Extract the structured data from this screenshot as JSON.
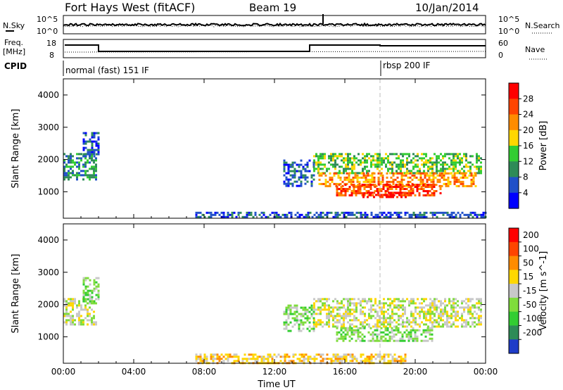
{
  "header": {
    "station": "Fort Hays West (fitACF)",
    "beam": "Beam 19",
    "date": "10/Jan/2014"
  },
  "top_panels": {
    "nsky_label": "N.Sky",
    "nsearch_label": "N.Search",
    "nsky_ticks": [
      "10^5",
      "10^0"
    ],
    "nsearch_ticks": [
      "10^5",
      "10^0"
    ],
    "freq_label_1": "Freq.",
    "freq_label_2": "[MHz]",
    "freq_ticks": [
      "18",
      "8"
    ],
    "nave_label": "Nave",
    "nave_ticks": [
      "60",
      "0"
    ],
    "cpid_label": "CPID",
    "cpid_mode_1": "normal (fast) 151 IF",
    "cpid_mode_2": "rbsp 200 IF"
  },
  "chart_data": [
    {
      "type": "heatmap",
      "title": "",
      "xlabel": "Time UT",
      "ylabel": "Slant Range [km]",
      "x_ticks": [
        "00:00",
        "04:00",
        "08:00",
        "12:00",
        "16:00",
        "20:00",
        "00:00"
      ],
      "y_ticks": [
        "1000",
        "2000",
        "3000",
        "4000"
      ],
      "xlim_hours": [
        0,
        24
      ],
      "ylim_km": [
        180,
        4500
      ],
      "colorbar": {
        "label": "Power [dB]",
        "ticks": [
          "4",
          "8",
          "12",
          "16",
          "20",
          "24",
          "28"
        ],
        "colors": [
          "#0000ff",
          "#2050c8",
          "#2e8b57",
          "#32cd32",
          "#ffd700",
          "#ff8c00",
          "#ff4500",
          "#ff0000"
        ]
      },
      "echo_regions": [
        {
          "t0": 0.0,
          "t1": 1.9,
          "r0": 1400,
          "r1": 2200,
          "level": 2
        },
        {
          "t0": 1.1,
          "t1": 2.0,
          "r0": 2100,
          "r1": 2850,
          "level": 1
        },
        {
          "t0": 12.5,
          "t1": 14.2,
          "r0": 1200,
          "r1": 2000,
          "level": 1
        },
        {
          "t0": 14.2,
          "t1": 23.8,
          "r0": 1600,
          "r1": 2200,
          "level": 3
        },
        {
          "t0": 14.5,
          "t1": 23.5,
          "r0": 1200,
          "r1": 1600,
          "level": 5
        },
        {
          "t0": 15.5,
          "t1": 21.5,
          "r0": 900,
          "r1": 1250,
          "level": 6
        },
        {
          "t0": 17.0,
          "t1": 19.5,
          "r0": 850,
          "r1": 1000,
          "level": 7
        },
        {
          "t0": 7.5,
          "t1": 24.0,
          "r0": 200,
          "r1": 380,
          "level": 1
        }
      ]
    },
    {
      "type": "heatmap",
      "title": "",
      "xlabel": "Time UT",
      "ylabel": "Slant Range [km]",
      "x_ticks": [
        "00:00",
        "04:00",
        "08:00",
        "12:00",
        "16:00",
        "20:00",
        "00:00"
      ],
      "y_ticks": [
        "1000",
        "2000",
        "3000",
        "4000"
      ],
      "xlim_hours": [
        0,
        24
      ],
      "ylim_km": [
        180,
        4500
      ],
      "colorbar": {
        "label": "Velocity [m s^-1]",
        "ticks": [
          "200",
          "100",
          "50",
          "15",
          "-15",
          "-50",
          "-100",
          "-200"
        ],
        "colors": [
          "#1e3cc8",
          "#2e8b57",
          "#32cd32",
          "#7fdc3c",
          "#c8c8c8",
          "#ffd700",
          "#ff8c00",
          "#ff4500",
          "#ff0000"
        ]
      },
      "echo_regions": [
        {
          "t0": 0.0,
          "t1": 1.9,
          "r0": 1400,
          "r1": 2200,
          "level": 4
        },
        {
          "t0": 1.1,
          "t1": 2.0,
          "r0": 2100,
          "r1": 2850,
          "level": 3
        },
        {
          "t0": 12.5,
          "t1": 14.2,
          "r0": 1200,
          "r1": 2000,
          "level": 3
        },
        {
          "t0": 14.2,
          "t1": 23.8,
          "r0": 1300,
          "r1": 2200,
          "level": 4
        },
        {
          "t0": 15.5,
          "t1": 21.0,
          "r0": 850,
          "r1": 1300,
          "level": 3
        },
        {
          "t0": 7.5,
          "t1": 19.5,
          "r0": 200,
          "r1": 480,
          "level": 5
        }
      ]
    }
  ],
  "axis_bottom_label": "Time UT"
}
